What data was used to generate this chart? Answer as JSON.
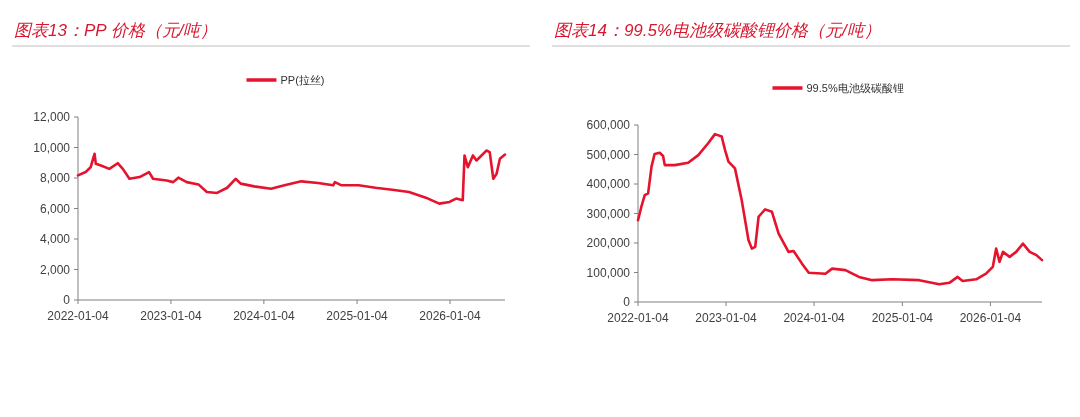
{
  "chart_data": [
    {
      "type": "line",
      "title": "图表13：PP 价格（元/吨）",
      "legend": "top",
      "grid": false,
      "xlim": [
        "2022-01-04",
        "2026-08-08"
      ],
      "xticks": [
        "2022-01-04",
        "2023-01-04",
        "2024-01-04",
        "2025-01-04",
        "2026-01-04"
      ],
      "ylim": [
        0,
        12000
      ],
      "yticks": [
        {
          "value": 0,
          "label": "0"
        },
        {
          "value": 2000,
          "label": "2,000"
        },
        {
          "value": 4000,
          "label": "4,000"
        },
        {
          "value": 6000,
          "label": "6,000"
        },
        {
          "value": 8000,
          "label": "8,000"
        },
        {
          "value": 10000,
          "label": "10,000"
        },
        {
          "value": 12000,
          "label": "12,000"
        }
      ],
      "series": [
        {
          "name": "PP(拉丝)",
          "color": "#e5132d",
          "x": [
            "2022-01-04",
            "2022-02-03",
            "2022-02-23",
            "2022-03-04",
            "2022-03-10",
            "2022-03-15",
            "2022-04-04",
            "2022-05-07",
            "2022-06-09",
            "2022-06-29",
            "2022-07-25",
            "2022-09-03",
            "2022-10-10",
            "2022-10-26",
            "2022-12-18",
            "2023-01-13",
            "2023-02-02",
            "2023-03-07",
            "2023-04-22",
            "2023-05-25",
            "2023-07-04",
            "2023-08-13",
            "2023-09-15",
            "2023-10-05",
            "2023-11-27",
            "2024-02-01",
            "2024-03-25",
            "2024-05-30",
            "2024-08-04",
            "2024-10-02",
            "2024-10-09",
            "2024-11-04",
            "2025-01-10",
            "2025-03-17",
            "2025-05-22",
            "2025-07-27",
            "2025-10-01",
            "2025-11-23",
            "2026-01-02",
            "2026-01-28",
            "2026-02-23",
            "2026-03-02",
            "2026-03-15",
            "2026-04-04",
            "2026-04-18",
            "2026-05-27",
            "2026-06-09",
            "2026-06-23",
            "2026-07-06",
            "2026-07-19",
            "2026-08-08"
          ],
          "values": [
            8170,
            8390,
            8710,
            9260,
            9590,
            8930,
            8820,
            8600,
            8970,
            8600,
            7950,
            8060,
            8390,
            7950,
            7840,
            7730,
            8020,
            7730,
            7580,
            7080,
            7020,
            7360,
            7950,
            7630,
            7450,
            7300,
            7520,
            7780,
            7670,
            7520,
            7730,
            7520,
            7520,
            7360,
            7230,
            7080,
            6710,
            6320,
            6430,
            6650,
            6540,
            9480,
            8710,
            9480,
            9150,
            9800,
            9700,
            7950,
            8280,
            9260,
            9540
          ]
        }
      ]
    },
    {
      "type": "line",
      "title": "图表14：99.5%电池级碳酸锂价格（元/吨）",
      "legend": "top",
      "grid": false,
      "xlim": [
        "2022-01-04",
        "2026-08-06"
      ],
      "xticks": [
        "2022-01-04",
        "2023-01-04",
        "2024-01-04",
        "2025-01-04",
        "2026-01-04"
      ],
      "ylim": [
        0,
        600000
      ],
      "yticks": [
        {
          "value": 0,
          "label": "0"
        },
        {
          "value": 100000,
          "label": "100,000"
        },
        {
          "value": 200000,
          "label": "200,000"
        },
        {
          "value": 300000,
          "label": "300,000"
        },
        {
          "value": 400000,
          "label": "400,000"
        },
        {
          "value": 500000,
          "label": "500,000"
        },
        {
          "value": 600000,
          "label": "600,000"
        }
      ],
      "series": [
        {
          "name": "99.5%电池级碳酸锂",
          "color": "#e5132d",
          "x": [
            "2022-01-04",
            "2022-01-18",
            "2022-02-01",
            "2022-02-15",
            "2022-03-01",
            "2022-03-14",
            "2022-04-04",
            "2022-04-18",
            "2022-04-25",
            "2022-06-06",
            "2022-07-31",
            "2022-09-11",
            "2022-10-22",
            "2022-11-19",
            "2022-12-17",
            "2022-12-31",
            "2023-01-14",
            "2023-02-10",
            "2023-03-10",
            "2023-04-07",
            "2023-04-21",
            "2023-05-05",
            "2023-05-19",
            "2023-06-15",
            "2023-07-13",
            "2023-08-10",
            "2023-09-20",
            "2023-10-11",
            "2023-11-15",
            "2023-12-13",
            "2024-02-20",
            "2024-03-19",
            "2024-05-13",
            "2024-07-08",
            "2024-09-01",
            "2024-11-23",
            "2025-03-15",
            "2025-06-06",
            "2025-07-18",
            "2025-08-21",
            "2025-09-11",
            "2025-11-06",
            "2025-12-17",
            "2026-01-14",
            "2026-01-28",
            "2026-02-11",
            "2026-02-25",
            "2026-03-25",
            "2026-04-21",
            "2026-05-19",
            "2026-06-16",
            "2026-07-14",
            "2026-08-06"
          ],
          "values": [
            277000,
            323000,
            362000,
            368000,
            459000,
            502000,
            506000,
            495000,
            464000,
            464000,
            472000,
            498000,
            538000,
            569000,
            561000,
            515000,
            476000,
            453000,
            345000,
            210000,
            181000,
            187000,
            289000,
            314000,
            306000,
            232000,
            170000,
            173000,
            130000,
            99000,
            96000,
            113000,
            108000,
            85000,
            74000,
            77000,
            74000,
            60000,
            65000,
            85000,
            71000,
            77000,
            96000,
            119000,
            181000,
            136000,
            170000,
            153000,
            170000,
            198000,
            170000,
            159000,
            142000
          ]
        }
      ]
    }
  ]
}
